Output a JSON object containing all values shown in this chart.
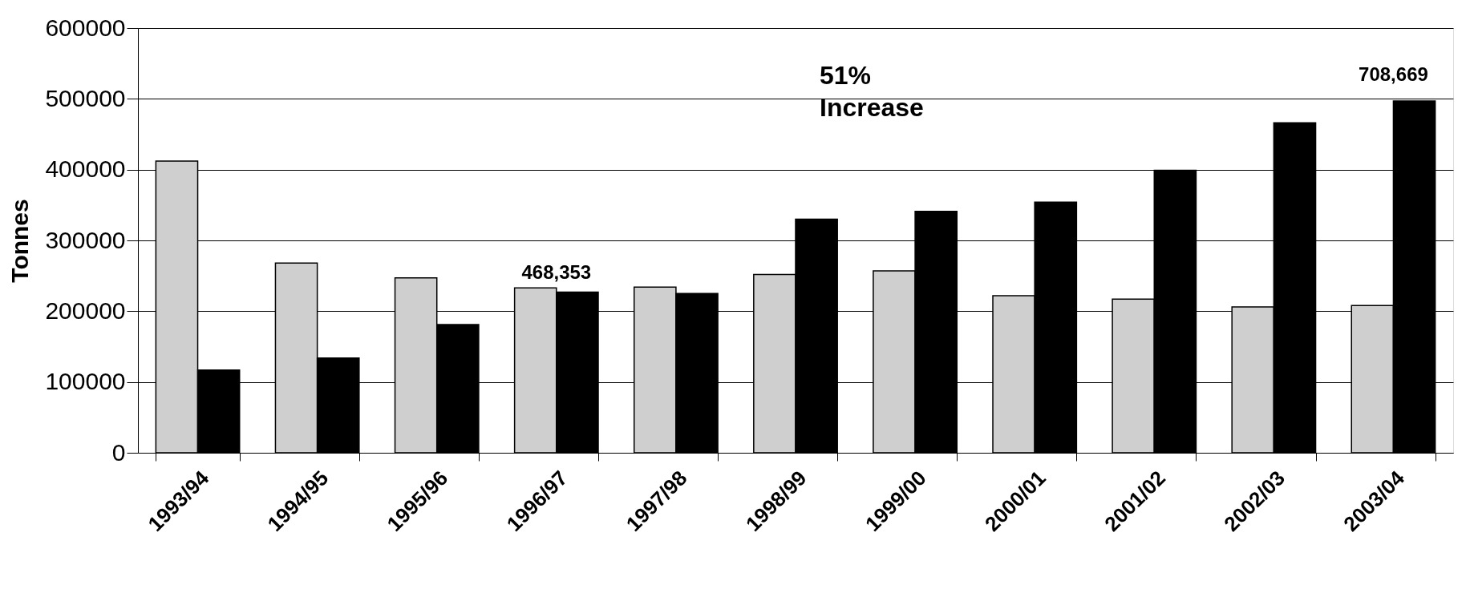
{
  "chart_data": {
    "type": "bar",
    "ylabel": "Tonnes",
    "categories": [
      "1993/94",
      "1994/95",
      "1995/96",
      "1996/97",
      "1997/98",
      "1998/99",
      "1999/00",
      "2000/01",
      "2001/02",
      "2002/03",
      "2003/04"
    ],
    "series": [
      {
        "color": "#cfcfcf",
        "values": [
          412000,
          268000,
          247000,
          233000,
          234000,
          252000,
          257000,
          222000,
          217000,
          206000,
          208000
        ]
      },
      {
        "color": "#000000",
        "values": [
          117000,
          134000,
          181000,
          227000,
          225000,
          330000,
          341000,
          354000,
          399000,
          466000,
          497000
        ]
      }
    ],
    "ylim": [
      0,
      600000
    ],
    "yticks": [
      0,
      100000,
      200000,
      300000,
      400000,
      500000,
      600000
    ],
    "grid": "y",
    "annotations": [
      "468,353",
      "708,669",
      "51% Increase"
    ]
  }
}
